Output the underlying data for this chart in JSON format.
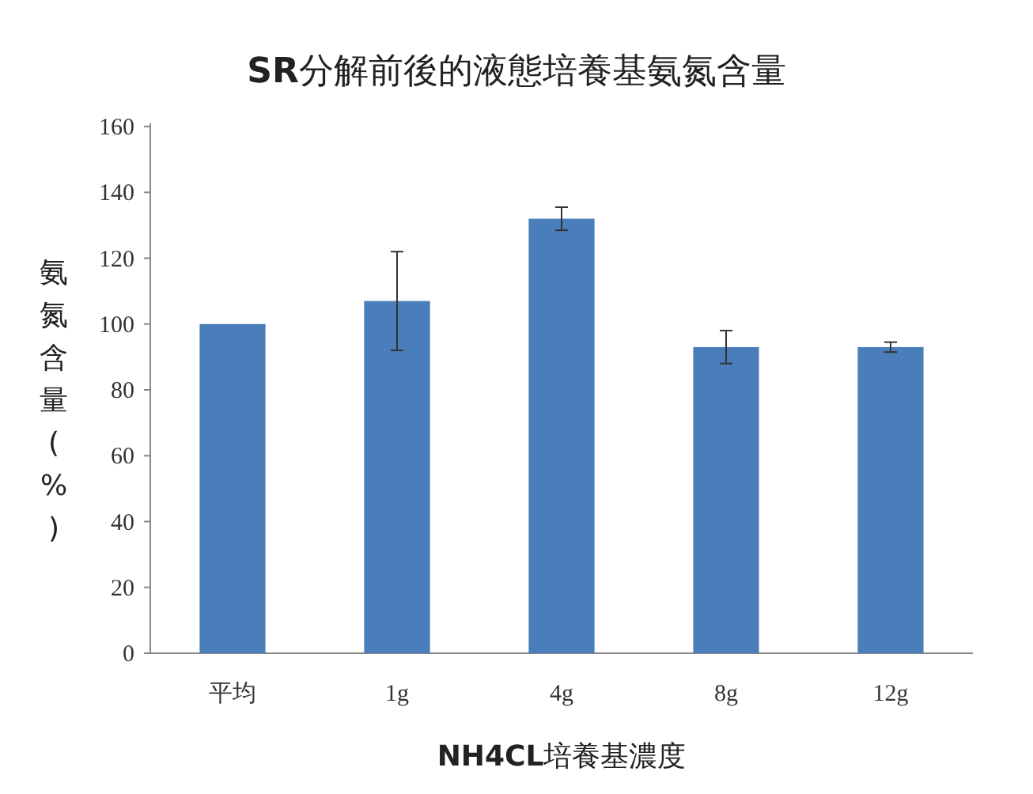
{
  "chart_data": {
    "type": "bar",
    "title": "**SR**分解前後的液態培養基氨氮含量",
    "xlabel": "**NH4CL**培養基濃度",
    "ylabel": "氨氮含量(%)",
    "categories": [
      "平均",
      "1g",
      "4g",
      "8g",
      "12g"
    ],
    "values": [
      100,
      107,
      132,
      93,
      93
    ],
    "errors": [
      null,
      15,
      3.5,
      5,
      1.5
    ],
    "color": "#4a7ebb",
    "ylim": [
      0,
      160
    ],
    "yticks": [
      0,
      20,
      40,
      60,
      80,
      100,
      120,
      140,
      160
    ],
    "grid": false
  }
}
